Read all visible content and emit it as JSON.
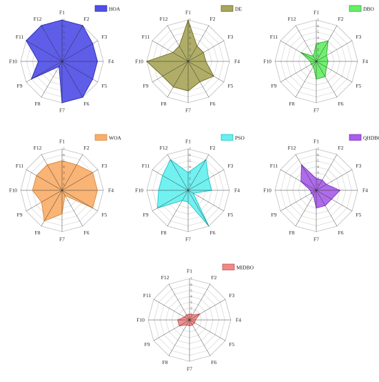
{
  "chart_data": [
    {
      "type": "radar",
      "name": "HOA",
      "color": "#5050e6",
      "edge": "#2a2ab0",
      "categories": [
        "F1",
        "F2",
        "F3",
        "F4",
        "F5",
        "F6",
        "F7",
        "F8",
        "F9",
        "F10",
        "F11",
        "F12"
      ],
      "values": [
        7,
        7,
        6,
        6,
        6,
        7,
        7,
        1,
        6,
        4,
        7,
        7
      ],
      "rmax": 7,
      "ticks": [
        1,
        2,
        3,
        4,
        5,
        6,
        7
      ]
    },
    {
      "type": "radar",
      "name": "DE",
      "color": "#a8a65a",
      "edge": "#6a6a20",
      "categories": [
        "F1",
        "F2",
        "F3",
        "F4",
        "F5",
        "F6",
        "F7",
        "F8",
        "F9",
        "F10",
        "F11",
        "F12"
      ],
      "values": [
        7,
        3,
        3,
        3,
        5,
        4,
        5,
        5,
        5,
        7,
        3,
        3
      ],
      "rmax": 7,
      "ticks": [
        1,
        2,
        3,
        4,
        5,
        6,
        7
      ]
    },
    {
      "type": "radar",
      "name": "DBO",
      "color": "#66ee66",
      "edge": "#33aa33",
      "categories": [
        "F1",
        "F2",
        "F3",
        "F4",
        "F5",
        "F6",
        "F7",
        "F8",
        "F9",
        "F10",
        "F11",
        "F12"
      ],
      "values": [
        3,
        4,
        2,
        2,
        2,
        3,
        3,
        1,
        1,
        1,
        3,
        1
      ],
      "rmax": 7,
      "ticks": [
        1,
        2,
        3,
        4,
        5,
        6,
        7
      ]
    },
    {
      "type": "radar",
      "name": "WOA",
      "color": "#f8ae6a",
      "edge": "#d9883a",
      "categories": [
        "F1",
        "F2",
        "F3",
        "F4",
        "F5",
        "F6",
        "F7",
        "F8",
        "F9",
        "F10",
        "F11",
        "F12"
      ],
      "values": [
        5,
        5,
        6,
        6,
        6,
        1,
        4,
        6,
        4,
        5,
        5,
        5
      ],
      "rmax": 7,
      "ticks": [
        1,
        2,
        3,
        4,
        5,
        6,
        7
      ]
    },
    {
      "type": "radar",
      "name": "PSO",
      "color": "#66f0f0",
      "edge": "#20c0c0",
      "categories": [
        "F1",
        "F2",
        "F3",
        "F4",
        "F5",
        "F6",
        "F7",
        "F8",
        "F9",
        "F10",
        "F11",
        "F12"
      ],
      "values": [
        3,
        6,
        4,
        4,
        1,
        7,
        2,
        2,
        6,
        5,
        5,
        6
      ],
      "rmax": 7,
      "ticks": [
        1,
        2,
        3,
        4,
        5,
        6,
        7
      ]
    },
    {
      "type": "radar",
      "name": "QHDBO",
      "color": "#a860e8",
      "edge": "#7a30c0",
      "categories": [
        "F1",
        "F2",
        "F3",
        "F4",
        "F5",
        "F6",
        "F7",
        "F8",
        "F9",
        "F10",
        "F11",
        "F12"
      ],
      "values": [
        2,
        2,
        2,
        4,
        3,
        3,
        3,
        1,
        1,
        1,
        3,
        5
      ],
      "rmax": 7,
      "ticks": [
        1,
        2,
        3,
        4,
        5,
        6,
        7
      ]
    },
    {
      "type": "radar",
      "name": "MIDBO",
      "color": "#f08888",
      "edge": "#c05050",
      "categories": [
        "F1",
        "F2",
        "F3",
        "F4",
        "F5",
        "F6",
        "F7",
        "F8",
        "F9",
        "F10",
        "F11",
        "F12"
      ],
      "values": [
        1,
        1,
        2,
        1,
        1,
        1,
        1,
        1,
        2,
        2,
        1,
        1
      ],
      "rmax": 7,
      "ticks": [
        1,
        2,
        3,
        4,
        5,
        6,
        7
      ]
    }
  ]
}
